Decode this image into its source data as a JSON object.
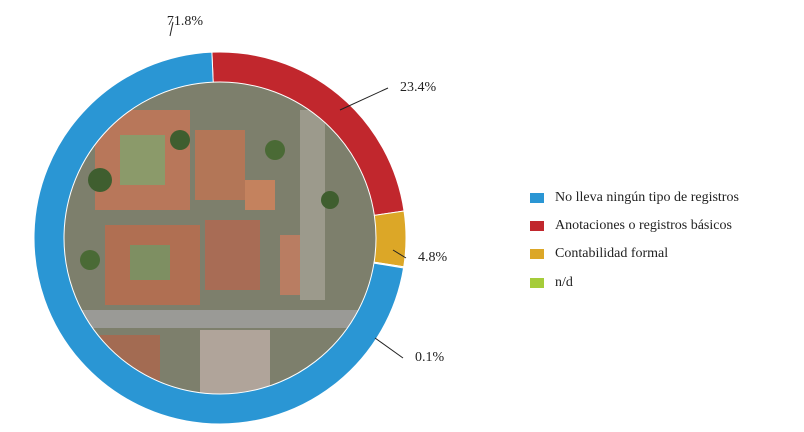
{
  "chart_data": {
    "type": "donut",
    "categories": [
      "No lleva ningún tipo de registros",
      "Anotaciones o registros básicos",
      "Contabilidad formal",
      "n/d"
    ],
    "values": [
      71.8,
      23.4,
      4.8,
      0.1
    ],
    "value_labels": [
      "71.8%",
      "23.4%",
      "4.8%",
      "0.1%"
    ],
    "colors": [
      "#2a96d4",
      "#c1272d",
      "#dca727",
      "#a5cc3a"
    ],
    "legend": "right"
  }
}
